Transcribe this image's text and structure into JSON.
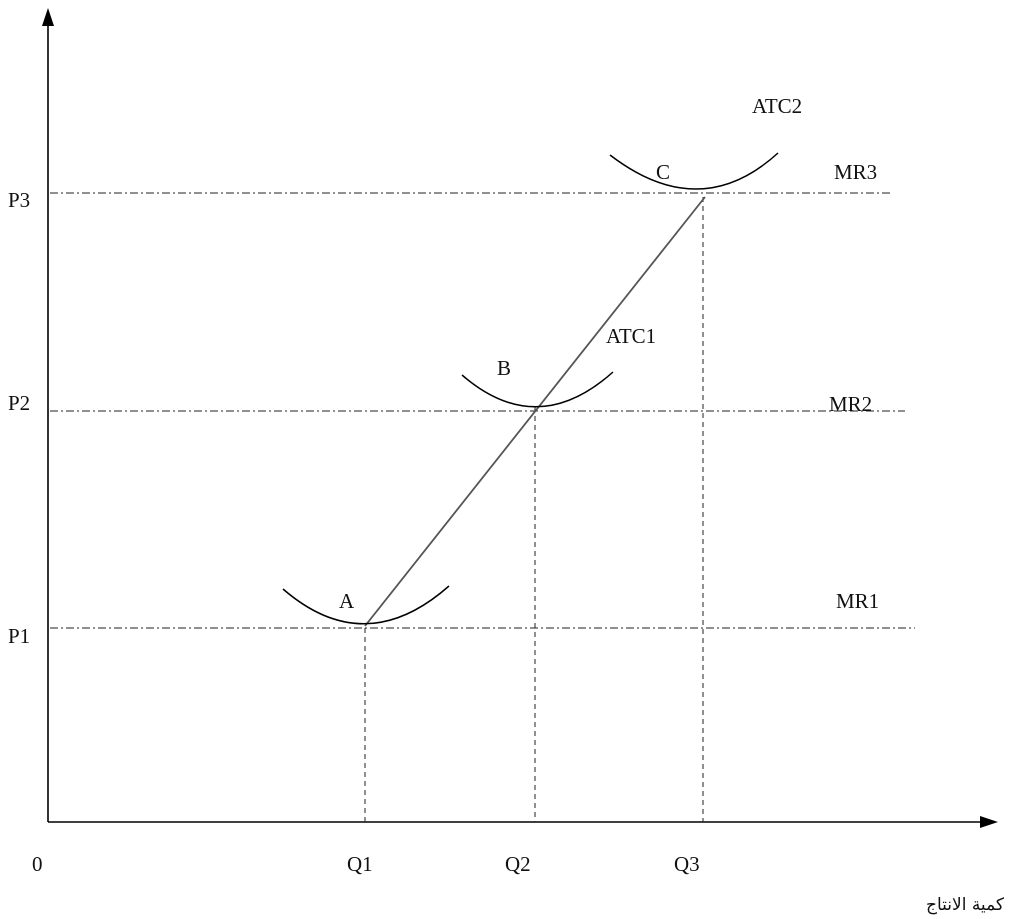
{
  "origin_label": "0",
  "x_axis_label": "كمية الانتاج",
  "price_labels": [
    "P1",
    "P2",
    "P3"
  ],
  "quantity_labels": [
    "Q1",
    "Q2",
    "Q3"
  ],
  "mr_labels": [
    "MR1",
    "MR2",
    "MR3"
  ],
  "point_labels": [
    "A",
    "B",
    "C"
  ],
  "curve_labels": {
    "atc1": "ATC1",
    "atc2": "ATC2"
  }
}
